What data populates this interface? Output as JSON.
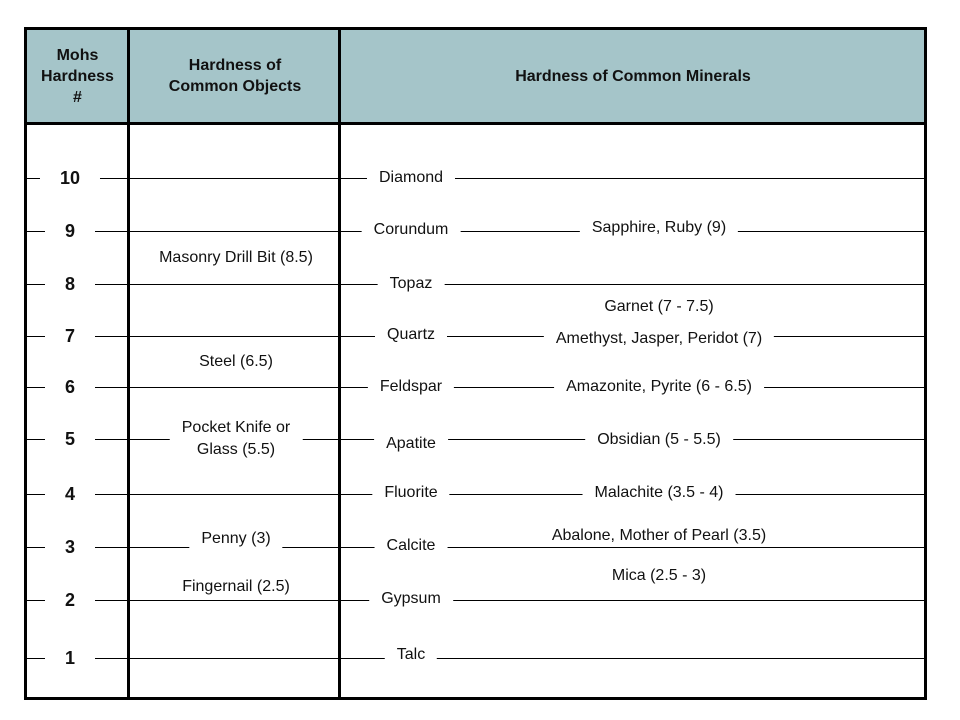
{
  "header": {
    "col1": "Mohs\nHardness\n#",
    "col2": "Hardness of\nCommon Objects",
    "col3": "Hardness of Common Minerals"
  },
  "scale": [
    "10",
    "9",
    "8",
    "7",
    "6",
    "5",
    "4",
    "3",
    "2",
    "1"
  ],
  "minerals": [
    "Diamond",
    "Corundum",
    "Topaz",
    "Quartz",
    "Feldspar",
    "Apatite",
    "Fluorite",
    "Calcite",
    "Gypsum",
    "Talc"
  ],
  "objects": [
    "Masonry Drill Bit (8.5)",
    "Steel (6.5)",
    "Pocket Knife or\nGlass (5.5)",
    "Penny (3)",
    "Fingernail (2.5)"
  ],
  "gems": [
    "Sapphire, Ruby (9)",
    "Garnet (7 - 7.5)",
    "Amethyst, Jasper, Peridot (7)",
    "Amazonite, Pyrite (6 - 6.5)",
    "Obsidian (5 - 5.5)",
    "Malachite (3.5 - 4)",
    "Abalone, Mother of Pearl (3.5)",
    "Mica (2.5 - 3)"
  ],
  "colors": {
    "header_bg": "#a5c5c9"
  }
}
